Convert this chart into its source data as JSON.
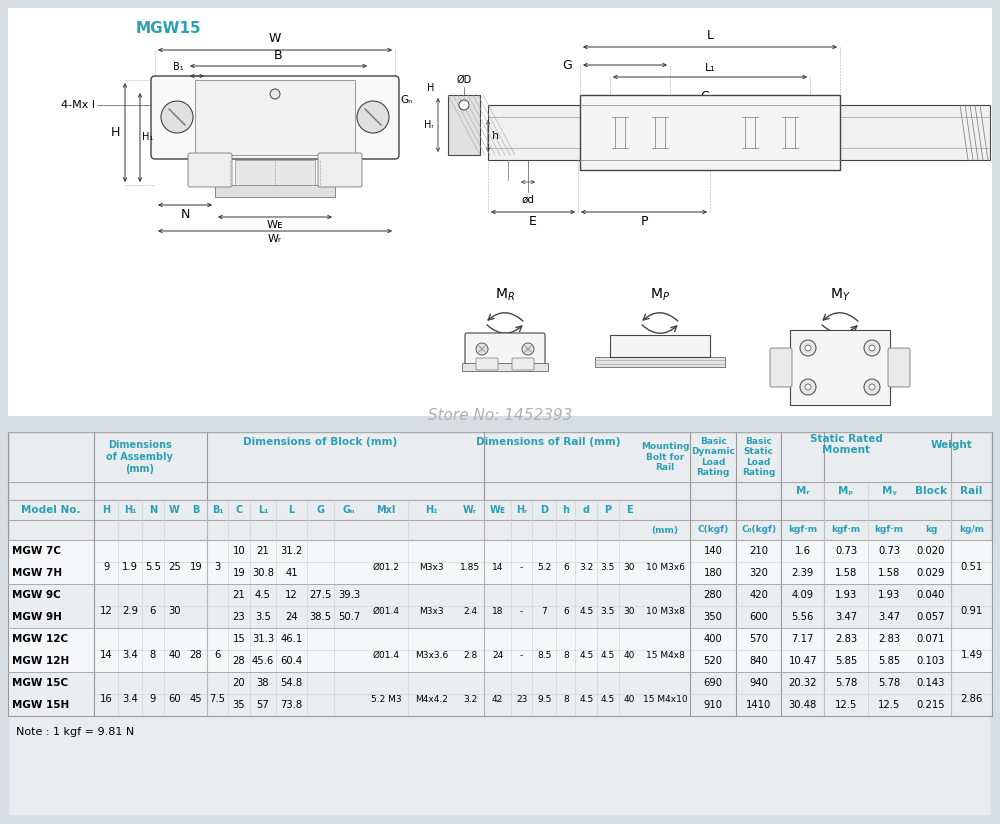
{
  "title": "MGW15",
  "store_no": "Store No: 1452393",
  "note": "Note : 1 kgf = 9.81 N",
  "bg_top": "#ffffff",
  "bg_bottom": "#e0e4e8",
  "header_color": "#2ba0b4",
  "rows": [
    {
      "model": "MGW 7C",
      "H": "",
      "H1": "",
      "N": "",
      "W": "",
      "B": "",
      "B1": "",
      "C": "10",
      "L1": "21",
      "L": "31.2",
      "G": "",
      "Gn": "",
      "Mxl": "",
      "H2": "",
      "WR": "",
      "WB": "",
      "HR": "",
      "D": "",
      "h": "",
      "d": "",
      "P": "",
      "E": "",
      "bolt": "",
      "C_dyn": "140",
      "C0": "210",
      "MR": "1.6",
      "MP": "0.73",
      "MY": "0.73",
      "block": "0.020",
      "rail": ""
    },
    {
      "model": "MGW 7H",
      "H": "9",
      "H1": "1.9",
      "N": "5.5",
      "W": "25",
      "B": "19",
      "B1": "3",
      "C": "19",
      "L1": "30.8",
      "L": "41",
      "G": "",
      "Gn": "",
      "Mxl": "Ø01.2",
      "H2": "M3x3",
      "WR": "1.85",
      "WB": "14",
      "HR": "-",
      "D": "5.2",
      "h": "6",
      "d": "3.2",
      "P": "3.5",
      "E": "30",
      "bolt": "10 M3x6",
      "C_dyn": "180",
      "C0": "320",
      "MR": "2.39",
      "MP": "1.58",
      "MY": "1.58",
      "block": "0.029",
      "rail": "0.51"
    },
    {
      "model": "MGW 9C",
      "H": "",
      "H1": "",
      "N": "",
      "W": "",
      "B": "",
      "B1": "",
      "C": "21",
      "L1": "4.5",
      "L": "12",
      "G": "27.5",
      "Gn": "39.3",
      "Mxl": "",
      "H2": "",
      "WR": "",
      "WB": "",
      "HR": "",
      "D": "",
      "h": "",
      "d": "",
      "P": "",
      "E": "",
      "bolt": "",
      "C_dyn": "280",
      "C0": "420",
      "MR": "4.09",
      "MP": "1.93",
      "MY": "1.93",
      "block": "0.040",
      "rail": ""
    },
    {
      "model": "MGW 9H",
      "H": "12",
      "H1": "2.9",
      "N": "6",
      "W": "30",
      "B": "",
      "B1": "",
      "C": "23",
      "L1": "3.5",
      "L": "24",
      "G": "38.5",
      "Gn": "50.7",
      "Mxl": "Ø01.4",
      "H2": "M3x3",
      "WR": "2.4",
      "WB": "18",
      "HR": "-",
      "D": "7",
      "h": "6",
      "d": "4.5",
      "P": "3.5",
      "E": "30",
      "bolt": "10 M3x8",
      "C_dyn": "350",
      "C0": "600",
      "MR": "5.56",
      "MP": "3.47",
      "MY": "3.47",
      "block": "0.057",
      "rail": "0.91"
    },
    {
      "model": "MGW 12C",
      "H": "",
      "H1": "",
      "N": "",
      "W": "",
      "B": "",
      "B1": "",
      "C": "15",
      "L1": "31.3",
      "L": "46.1",
      "G": "",
      "Gn": "",
      "Mxl": "",
      "H2": "",
      "WR": "",
      "WB": "",
      "HR": "",
      "D": "",
      "h": "",
      "d": "",
      "P": "",
      "E": "",
      "bolt": "",
      "C_dyn": "400",
      "C0": "570",
      "MR": "7.17",
      "MP": "2.83",
      "MY": "2.83",
      "block": "0.071",
      "rail": ""
    },
    {
      "model": "MGW 12H",
      "H": "14",
      "H1": "3.4",
      "N": "8",
      "W": "40",
      "B": "28",
      "B1": "6",
      "C": "28",
      "L1": "45.6",
      "L": "60.4",
      "G": "",
      "Gn": "",
      "Mxl": "Ø01.4",
      "H2": "M3x3.6",
      "WR": "2.8",
      "WB": "24",
      "HR": "-",
      "D": "8.5",
      "h": "8",
      "d": "4.5",
      "P": "4.5",
      "E": "40",
      "bolt": "15 M4x8",
      "C_dyn": "520",
      "C0": "840",
      "MR": "10.47",
      "MP": "5.85",
      "MY": "5.85",
      "block": "0.103",
      "rail": "1.49"
    },
    {
      "model": "MGW 15C",
      "H": "",
      "H1": "",
      "N": "",
      "W": "",
      "B": "",
      "B1": "",
      "C": "20",
      "L1": "38",
      "L": "54.8",
      "G": "",
      "Gn": "",
      "Mxl": "",
      "H2": "",
      "WR": "",
      "WB": "",
      "HR": "",
      "D": "",
      "h": "",
      "d": "",
      "P": "",
      "E": "",
      "bolt": "",
      "C_dyn": "690",
      "C0": "940",
      "MR": "20.32",
      "MP": "5.78",
      "MY": "5.78",
      "block": "0.143",
      "rail": ""
    },
    {
      "model": "MGW 15H",
      "H": "16",
      "H1": "3.4",
      "N": "9",
      "W": "60",
      "B": "45",
      "B1": "7.5",
      "C": "35",
      "L1": "57",
      "L": "73.8",
      "G": "",
      "Gn": "",
      "Mxl": "5.2 M3",
      "H2": "M4x4.2",
      "WR": "3.2",
      "WB": "42",
      "HR": "23",
      "D": "9.5",
      "h": "8",
      "d": "4.5",
      "P": "4.5",
      "E": "40",
      "bolt": "15 M4x10",
      "C_dyn": "910",
      "C0": "1410",
      "MR": "30.48",
      "MP": "12.5",
      "MY": "12.5",
      "block": "0.215",
      "rail": "2.86"
    }
  ]
}
